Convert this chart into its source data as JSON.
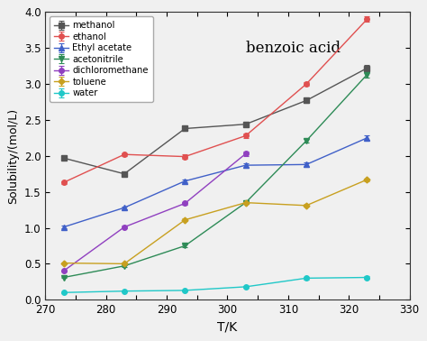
{
  "title": "benzoic acid",
  "xlabel": "T/K",
  "ylabel": "Solubility/(mol/L)",
  "xlim": [
    270,
    330
  ],
  "ylim": [
    0.0,
    4.0
  ],
  "yticks": [
    0.0,
    0.5,
    1.0,
    1.5,
    2.0,
    2.5,
    3.0,
    3.5,
    4.0
  ],
  "xtick_vals": [
    270,
    275,
    280,
    285,
    290,
    295,
    300,
    305,
    310,
    315,
    320,
    325,
    330
  ],
  "xtick_labels": [
    "270",
    "",
    "280",
    "",
    "290",
    "",
    "300",
    "",
    "310",
    "",
    "320",
    "",
    "330"
  ],
  "T": [
    273,
    283,
    293,
    303,
    313,
    323
  ],
  "bg_color": "#f0f0f0",
  "series": [
    {
      "name": "methanol",
      "color": "#555555",
      "marker": "s",
      "markersize": 4,
      "values": [
        1.97,
        1.75,
        2.38,
        2.44,
        2.77,
        3.22
      ],
      "errors": [
        0.02,
        0.02,
        0.03,
        0.03,
        0.03,
        0.04
      ]
    },
    {
      "name": "ethanol",
      "color": "#e05050",
      "marker": "o",
      "markersize": 4,
      "values": [
        1.63,
        2.02,
        1.99,
        2.28,
        3.0,
        3.9
      ],
      "errors": [
        0.02,
        0.02,
        0.03,
        0.03,
        0.03,
        0.04
      ]
    },
    {
      "name": "Ethyl acetate",
      "color": "#4060c8",
      "marker": "^",
      "markersize": 4,
      "values": [
        1.01,
        1.28,
        1.65,
        1.87,
        1.88,
        2.25
      ],
      "errors": [
        0.02,
        0.02,
        0.02,
        0.03,
        0.03,
        0.03
      ]
    },
    {
      "name": "acetonitrile",
      "color": "#2e8b57",
      "marker": "v",
      "markersize": 4,
      "values": [
        0.31,
        0.47,
        0.75,
        1.35,
        2.21,
        3.13
      ],
      "errors": [
        0.01,
        0.01,
        0.02,
        0.02,
        0.03,
        0.04
      ]
    },
    {
      "name": "dichloromethane",
      "color": "#9040c0",
      "marker": "o",
      "markersize": 4,
      "values": [
        0.4,
        1.01,
        1.34,
        2.03,
        null,
        null
      ],
      "errors": [
        0.01,
        0.02,
        0.02,
        0.03,
        null,
        null
      ]
    },
    {
      "name": "toluene",
      "color": "#c8a020",
      "marker": "D",
      "markersize": 3.5,
      "values": [
        0.51,
        0.5,
        1.11,
        1.35,
        1.31,
        1.67
      ],
      "errors": [
        0.01,
        0.01,
        0.02,
        0.02,
        0.02,
        0.02
      ]
    },
    {
      "name": "water",
      "color": "#20c8c8",
      "marker": "o",
      "markersize": 4,
      "values": [
        0.1,
        0.12,
        0.13,
        0.18,
        0.3,
        0.31
      ],
      "errors": [
        0.005,
        0.01,
        0.01,
        0.01,
        0.015,
        0.015
      ]
    }
  ]
}
